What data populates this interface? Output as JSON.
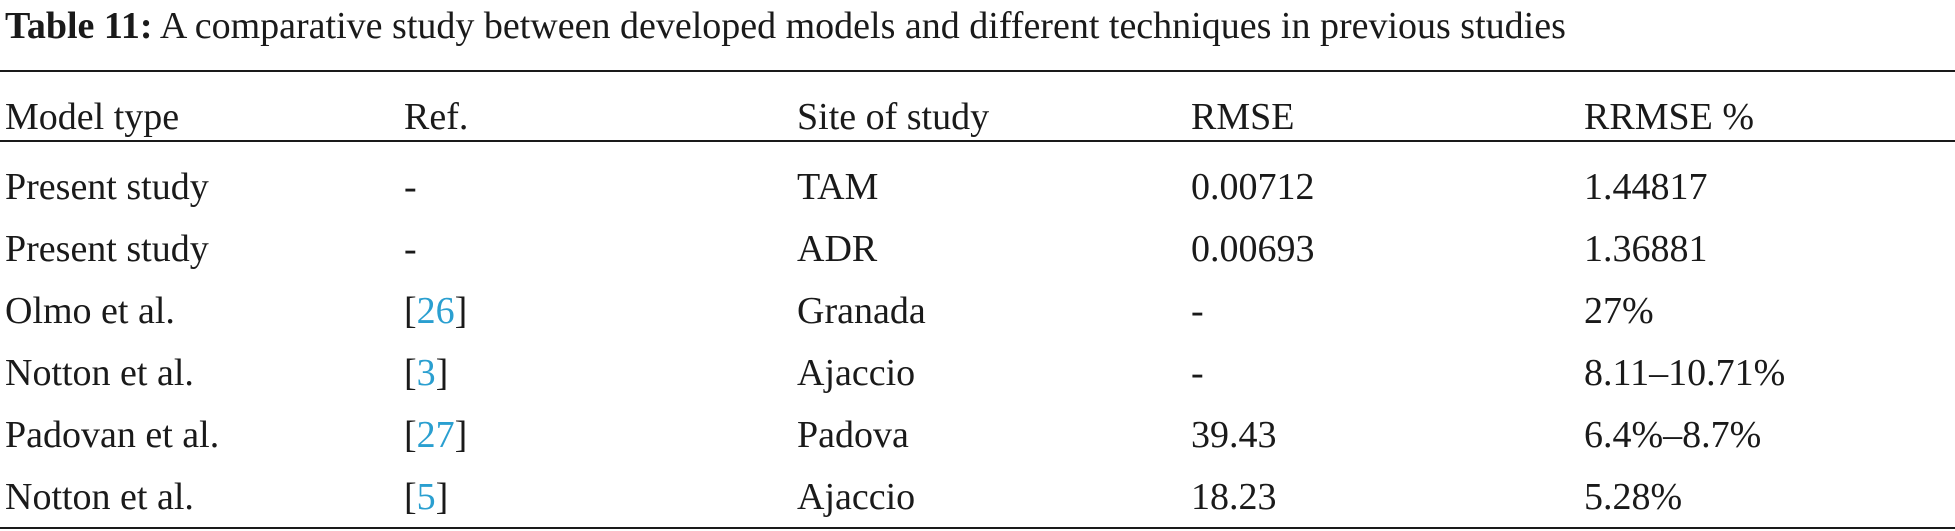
{
  "caption": {
    "label": "Table 11:",
    "text": " A comparative study between developed models and different techniques in previous studies"
  },
  "table": {
    "headers": [
      "Model type",
      "Ref.",
      "Site of study",
      "RMSE",
      "RRMSE %"
    ],
    "rows": [
      {
        "model": "Present study",
        "ref": "-",
        "ref_num": "",
        "ref_open": "",
        "ref_close": "",
        "site": "TAM",
        "rmse": "0.00712",
        "rrmse": "1.44817"
      },
      {
        "model": "Present study",
        "ref": "-",
        "ref_num": "",
        "ref_open": "",
        "ref_close": "",
        "site": "ADR",
        "rmse": "0.00693",
        "rrmse": "1.36881"
      },
      {
        "model": "Olmo et al.",
        "ref": "",
        "ref_num": "26",
        "ref_open": "[",
        "ref_close": "]",
        "site": "Granada",
        "rmse": "-",
        "rrmse": "27%"
      },
      {
        "model": "Notton et al.",
        "ref": "",
        "ref_num": "3",
        "ref_open": "[",
        "ref_close": "]",
        "site": "Ajaccio",
        "rmse": "-",
        "rrmse": "8.11–10.71%"
      },
      {
        "model": "Padovan et al.",
        "ref": "",
        "ref_num": "27",
        "ref_open": "[",
        "ref_close": "]",
        "site": "Padova",
        "rmse": "39.43",
        "rrmse": "6.4%–8.7%"
      },
      {
        "model": "Notton et al.",
        "ref": "",
        "ref_num": "5",
        "ref_open": "[",
        "ref_close": "]",
        "site": "Ajaccio",
        "rmse": "18.23",
        "rrmse": "5.28%"
      }
    ]
  },
  "colors": {
    "text": "#1a1a1a",
    "reference_link": "#2a9fd0"
  }
}
